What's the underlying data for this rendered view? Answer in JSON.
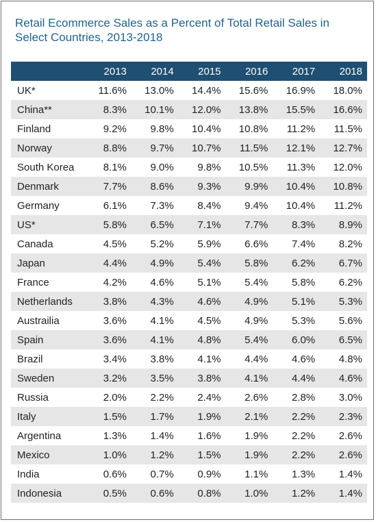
{
  "chart_data": {
    "type": "table",
    "title": "Retail Ecommerce Sales as a Percent of Total Retail Sales in Select Countries, 2013-2018",
    "columns": [
      "",
      "2013",
      "2014",
      "2015",
      "2016",
      "2017",
      "2018"
    ],
    "rows": [
      {
        "country": "UK*",
        "values": [
          "11.6%",
          "13.0%",
          "14.4%",
          "15.6%",
          "16.9%",
          "18.0%"
        ]
      },
      {
        "country": "China**",
        "values": [
          "8.3%",
          "10.1%",
          "12.0%",
          "13.8%",
          "15.5%",
          "16.6%"
        ]
      },
      {
        "country": "Finland",
        "values": [
          "9.2%",
          "9.8%",
          "10.4%",
          "10.8%",
          "11.2%",
          "11.5%"
        ]
      },
      {
        "country": "Norway",
        "values": [
          "8.8%",
          "9.7%",
          "10.7%",
          "11.5%",
          "12.1%",
          "12.7%"
        ]
      },
      {
        "country": "South Korea",
        "values": [
          "8.1%",
          "9.0%",
          "9.8%",
          "10.5%",
          "11.3%",
          "12.0%"
        ]
      },
      {
        "country": "Denmark",
        "values": [
          "7.7%",
          "8.6%",
          "9.3%",
          "9.9%",
          "10.4%",
          "10.8%"
        ]
      },
      {
        "country": "Germany",
        "values": [
          "6.1%",
          "7.3%",
          "8.4%",
          "9.4%",
          "10.4%",
          "11.2%"
        ]
      },
      {
        "country": "US*",
        "values": [
          "5.8%",
          "6.5%",
          "7.1%",
          "7.7%",
          "8.3%",
          "8.9%"
        ]
      },
      {
        "country": "Canada",
        "values": [
          "4.5%",
          "5.2%",
          "5.9%",
          "6.6%",
          "7.4%",
          "8.2%"
        ]
      },
      {
        "country": "Japan",
        "values": [
          "4.4%",
          "4.9%",
          "5.4%",
          "5.8%",
          "6.2%",
          "6.7%"
        ]
      },
      {
        "country": "France",
        "values": [
          "4.2%",
          "4.6%",
          "5.1%",
          "5.4%",
          "5.8%",
          "6.2%"
        ]
      },
      {
        "country": "Netherlands",
        "values": [
          "3.8%",
          "4.3%",
          "4.6%",
          "4.9%",
          "5.1%",
          "5.3%"
        ]
      },
      {
        "country": "Austrailia",
        "values": [
          "3.6%",
          "4.1%",
          "4.5%",
          "4.9%",
          "5.3%",
          "5.6%"
        ]
      },
      {
        "country": "Spain",
        "values": [
          "3.6%",
          "4.1%",
          "4.8%",
          "5.4%",
          "6.0%",
          "6.5%"
        ]
      },
      {
        "country": "Brazil",
        "values": [
          "3.4%",
          "3.8%",
          "4.1%",
          "4.4%",
          "4.6%",
          "4.8%"
        ]
      },
      {
        "country": "Sweden",
        "values": [
          "3.2%",
          "3.5%",
          "3.8%",
          "4.1%",
          "4.4%",
          "4.6%"
        ]
      },
      {
        "country": "Russia",
        "values": [
          "2.0%",
          "2.2%",
          "2.4%",
          "2.6%",
          "2.8%",
          "3.0%"
        ]
      },
      {
        "country": "Italy",
        "values": [
          "1.5%",
          "1.7%",
          "1.9%",
          "2.1%",
          "2.2%",
          "2.3%"
        ]
      },
      {
        "country": "Argentina",
        "values": [
          "1.3%",
          "1.4%",
          "1.6%",
          "1.9%",
          "2.2%",
          "2.6%"
        ]
      },
      {
        "country": "Mexico",
        "values": [
          "1.0%",
          "1.2%",
          "1.5%",
          "1.9%",
          "2.2%",
          "2.6%"
        ]
      },
      {
        "country": "India",
        "values": [
          "0.6%",
          "0.7%",
          "0.9%",
          "1.1%",
          "1.3%",
          "1.4%"
        ]
      },
      {
        "country": "Indonesia",
        "values": [
          "0.5%",
          "0.6%",
          "0.8%",
          "1.0%",
          "1.2%",
          "1.4%"
        ]
      }
    ]
  },
  "colors": {
    "title": "#1f6390",
    "header_bg": "#1f4f72",
    "header_text": "#ffffff",
    "stripe": "#e6e6e6",
    "border": "#6f6f6f"
  }
}
